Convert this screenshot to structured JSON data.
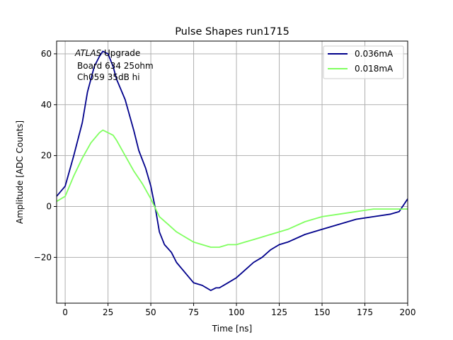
{
  "chart_data": {
    "type": "line",
    "title": "Pulse Shapes run1715",
    "xlabel": "Time [ns]",
    "ylabel": "Amplitude [ADC Counts]",
    "xlim": [
      -5,
      200
    ],
    "ylim": [
      -38,
      65
    ],
    "xticks": [
      0,
      25,
      50,
      75,
      100,
      125,
      150,
      175,
      200
    ],
    "yticks": [
      -20,
      0,
      20,
      40,
      60
    ],
    "ytick_labels": [
      "−20",
      "0",
      "20",
      "40",
      "60"
    ],
    "grid": true,
    "legend_position": "top-right",
    "annotation": {
      "line1_italic": "ATLAS",
      "line1_rest": " Upgrade",
      "line2": "Board 634 25ohm",
      "line3": "Ch059 35dB hi"
    },
    "series": [
      {
        "name": "0.036mA",
        "color": "#00008b",
        "x": [
          -5,
          0,
          5,
          10,
          13,
          17,
          20,
          22,
          25,
          28,
          30,
          35,
          40,
          43,
          47,
          50,
          53,
          55,
          58,
          62,
          65,
          70,
          75,
          80,
          85,
          88,
          90,
          95,
          100,
          105,
          110,
          115,
          120,
          125,
          130,
          140,
          150,
          160,
          170,
          180,
          190,
          195,
          200
        ],
        "y": [
          4,
          8,
          20,
          33,
          45,
          55,
          59,
          61,
          60,
          55,
          50,
          42,
          30,
          22,
          15,
          8,
          -2,
          -10,
          -15,
          -18,
          -22,
          -26,
          -30,
          -31,
          -33,
          -32,
          -32,
          -30,
          -28,
          -25,
          -22,
          -20,
          -17,
          -15,
          -14,
          -11,
          -9,
          -7,
          -5,
          -4,
          -3,
          -2,
          3
        ]
      },
      {
        "name": "0.018mA",
        "color": "#80ff60",
        "x": [
          -5,
          0,
          5,
          10,
          15,
          20,
          22,
          25,
          28,
          30,
          35,
          40,
          45,
          50,
          55,
          60,
          65,
          70,
          75,
          80,
          85,
          90,
          95,
          100,
          105,
          110,
          115,
          120,
          125,
          130,
          140,
          150,
          160,
          170,
          180,
          190,
          200
        ],
        "y": [
          2,
          4,
          12,
          19,
          25,
          29,
          30,
          29,
          28,
          26,
          20,
          14,
          9,
          3,
          -4,
          -7,
          -10,
          -12,
          -14,
          -15,
          -16,
          -16,
          -15,
          -15,
          -14,
          -13,
          -12,
          -11,
          -10,
          -9,
          -6,
          -4,
          -3,
          -2,
          -1,
          -1,
          -1
        ]
      }
    ]
  }
}
